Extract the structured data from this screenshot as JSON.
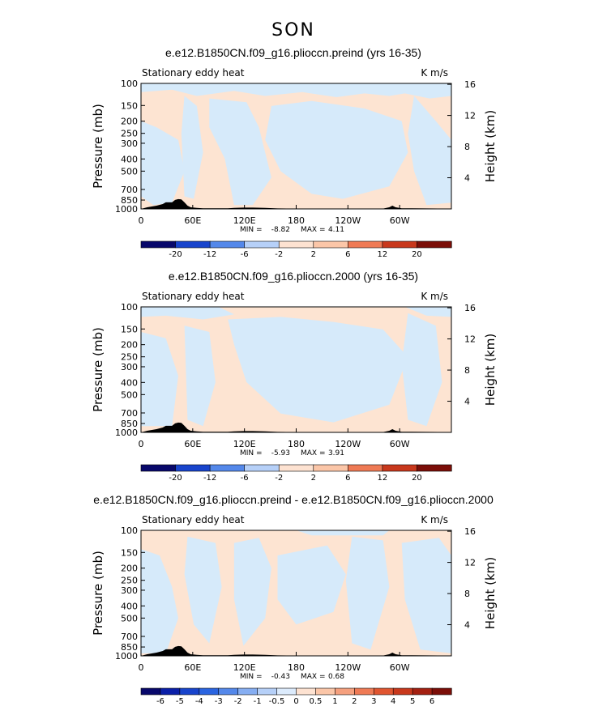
{
  "page_title": "SON",
  "colors": {
    "light_blue": "#d6eafa",
    "light_orange": "#fde4d2",
    "topography": "#000000"
  },
  "chart_data": [
    {
      "type": "heatmap",
      "title": "e.e12.B1850CN.f09_g16.plioccn.preind (yrs 16-35)",
      "left_label": "Stationary eddy heat",
      "units": "K m/s",
      "ylabel": "Pressure (mb)",
      "ylabel_right": "Height (km)",
      "y_ticks": [
        "100",
        "150",
        "200",
        "250",
        "300",
        "400",
        "500",
        "700",
        "850",
        "1000"
      ],
      "y_ticks_right": [
        "4",
        "8",
        "12",
        "16"
      ],
      "x_ticks": [
        "0",
        "60E",
        "120E",
        "180",
        "120W",
        "60W"
      ],
      "min_label": "MIN =",
      "min": "-8.82",
      "max_label": "MAX =",
      "max": "4.11",
      "colorbar_labels": [
        "-20",
        "-12",
        "-6",
        "-2",
        "2",
        "6",
        "12",
        "20"
      ]
    },
    {
      "type": "heatmap",
      "title": "e.e12.B1850CN.f09_g16.plioccn.2000 (yrs 16-35)",
      "left_label": "Stationary eddy heat",
      "units": "K m/s",
      "ylabel": "Pressure (mb)",
      "ylabel_right": "Height (km)",
      "y_ticks": [
        "100",
        "150",
        "200",
        "250",
        "300",
        "400",
        "500",
        "700",
        "850",
        "1000"
      ],
      "y_ticks_right": [
        "4",
        "8",
        "12",
        "16"
      ],
      "x_ticks": [
        "0",
        "60E",
        "120E",
        "180",
        "120W",
        "60W"
      ],
      "min_label": "MIN =",
      "min": "-5.93",
      "max_label": "MAX =",
      "max": "3.91",
      "colorbar_labels": [
        "-20",
        "-12",
        "-6",
        "-2",
        "2",
        "6",
        "12",
        "20"
      ]
    },
    {
      "type": "heatmap",
      "title": "e.e12.B1850CN.f09_g16.plioccn.preind - e.e12.B1850CN.f09_g16.plioccn.2000",
      "left_label": "Stationary eddy heat",
      "units": "K m/s",
      "ylabel": "Pressure (mb)",
      "ylabel_right": "Height (km)",
      "y_ticks": [
        "100",
        "150",
        "200",
        "250",
        "300",
        "400",
        "500",
        "700",
        "850",
        "1000"
      ],
      "y_ticks_right": [
        "4",
        "8",
        "12",
        "16"
      ],
      "x_ticks": [
        "0",
        "60E",
        "120E",
        "180",
        "120W",
        "60W"
      ],
      "min_label": "MIN =",
      "min": "-0.43",
      "max_label": "MAX =",
      "max": "0.68",
      "colorbar_labels": [
        "-6",
        "-5",
        "-4",
        "-3",
        "-2",
        "-1",
        "-0.5",
        "0",
        "0.5",
        "1",
        "2",
        "3",
        "4",
        "5",
        "6"
      ]
    }
  ],
  "colorbar_colors": [
    "#08086b",
    "#0a1fa8",
    "#1844cc",
    "#2a64e0",
    "#5488ea",
    "#86aef2",
    "#b6d0f8",
    "#dcebfc",
    "#fde2d1",
    "#fbc6a8",
    "#f5a07e",
    "#ef7a55",
    "#e05530",
    "#c8381c",
    "#a42011",
    "#7b0e08"
  ]
}
